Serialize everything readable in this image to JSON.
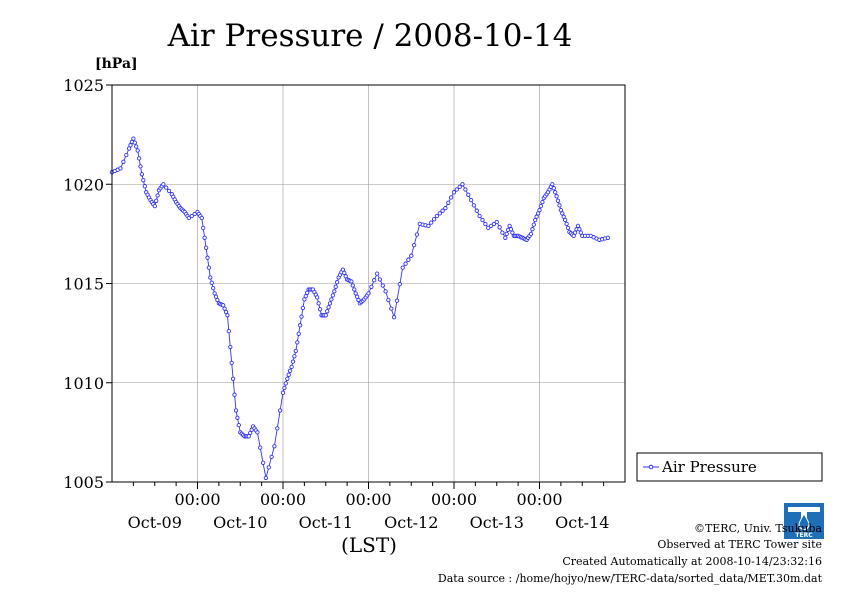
{
  "chart_data": {
    "type": "line",
    "title": "Air Pressure / 2008-10-14",
    "ylabel": "[hPa]",
    "xlabel": "(LST)",
    "ylim": [
      1005,
      1025
    ],
    "yticks": [
      "1005",
      "1010",
      "1015",
      "1020",
      "1025"
    ],
    "ytick_values": [
      1005,
      1010,
      1015,
      1020,
      1025
    ],
    "xlim": [
      0,
      6
    ],
    "xtick_top_label": "00:00",
    "x_date_labels": [
      "Oct-09",
      "Oct-10",
      "Oct-11",
      "Oct-12",
      "Oct-13",
      "Oct-14"
    ],
    "grid": true,
    "legend_placement": "right",
    "series": [
      {
        "name": "Air Pressure",
        "color": "#3333ff",
        "x": [
          0.0,
          0.1,
          0.2,
          0.25,
          0.3,
          0.35,
          0.4,
          0.45,
          0.5,
          0.55,
          0.6,
          0.7,
          0.75,
          0.8,
          0.85,
          0.9,
          1.0,
          1.05,
          1.1,
          1.15,
          1.2,
          1.25,
          1.3,
          1.35,
          1.4,
          1.45,
          1.5,
          1.55,
          1.6,
          1.65,
          1.7,
          1.8,
          1.9,
          2.0,
          2.05,
          2.1,
          2.15,
          2.2,
          2.25,
          2.3,
          2.35,
          2.4,
          2.45,
          2.5,
          2.55,
          2.6,
          2.65,
          2.7,
          2.75,
          2.8,
          2.85,
          2.9,
          2.95,
          3.0,
          3.1,
          3.2,
          3.3,
          3.4,
          3.5,
          3.6,
          3.7,
          3.8,
          3.9,
          4.0,
          4.1,
          4.2,
          4.3,
          4.4,
          4.5,
          4.6,
          4.65,
          4.7,
          4.75,
          4.8,
          4.85,
          4.9,
          4.95,
          5.0,
          5.05,
          5.1,
          5.15,
          5.2,
          5.25,
          5.3,
          5.35,
          5.4,
          5.45,
          5.5,
          5.6,
          5.7,
          5.8
        ],
        "values": [
          1020.6,
          1020.8,
          1021.8,
          1022.3,
          1021.7,
          1020.5,
          1019.6,
          1019.2,
          1018.9,
          1019.7,
          1020.0,
          1019.5,
          1019.1,
          1018.8,
          1018.6,
          1018.3,
          1018.6,
          1018.3,
          1016.8,
          1015.3,
          1014.5,
          1014.0,
          1013.9,
          1013.4,
          1011.0,
          1008.6,
          1007.5,
          1007.3,
          1007.3,
          1007.8,
          1007.5,
          1005.2,
          1006.8,
          1009.5,
          1010.2,
          1010.8,
          1011.6,
          1012.9,
          1014.2,
          1014.7,
          1014.7,
          1014.3,
          1013.4,
          1013.4,
          1014.0,
          1014.6,
          1015.3,
          1015.7,
          1015.2,
          1015.1,
          1014.5,
          1014.0,
          1014.2,
          1014.5,
          1015.5,
          1014.6,
          1013.3,
          1015.8,
          1016.4,
          1018.0,
          1017.9,
          1018.4,
          1018.8,
          1019.6,
          1020.0,
          1019.2,
          1018.4,
          1017.8,
          1018.1,
          1017.3,
          1017.9,
          1017.4,
          1017.4,
          1017.3,
          1017.2,
          1017.5,
          1018.2,
          1018.7,
          1019.3,
          1019.6,
          1020.0,
          1019.4,
          1018.7,
          1018.2,
          1017.6,
          1017.4,
          1017.9,
          1017.4,
          1017.4,
          1017.2,
          1017.3
        ]
      }
    ]
  },
  "credits": {
    "line1": "©TERC, Univ. Tsukuba",
    "line2": "Observed at TERC Tower site",
    "line3": "Created Automatically at 2008-10-14/23:32:16",
    "line4": "Data source : /home/hojyo/new/TERC-data/sorted_data/MET.30m.dat"
  },
  "logo": {
    "text": "TERC",
    "color": "#1f6fb8"
  }
}
